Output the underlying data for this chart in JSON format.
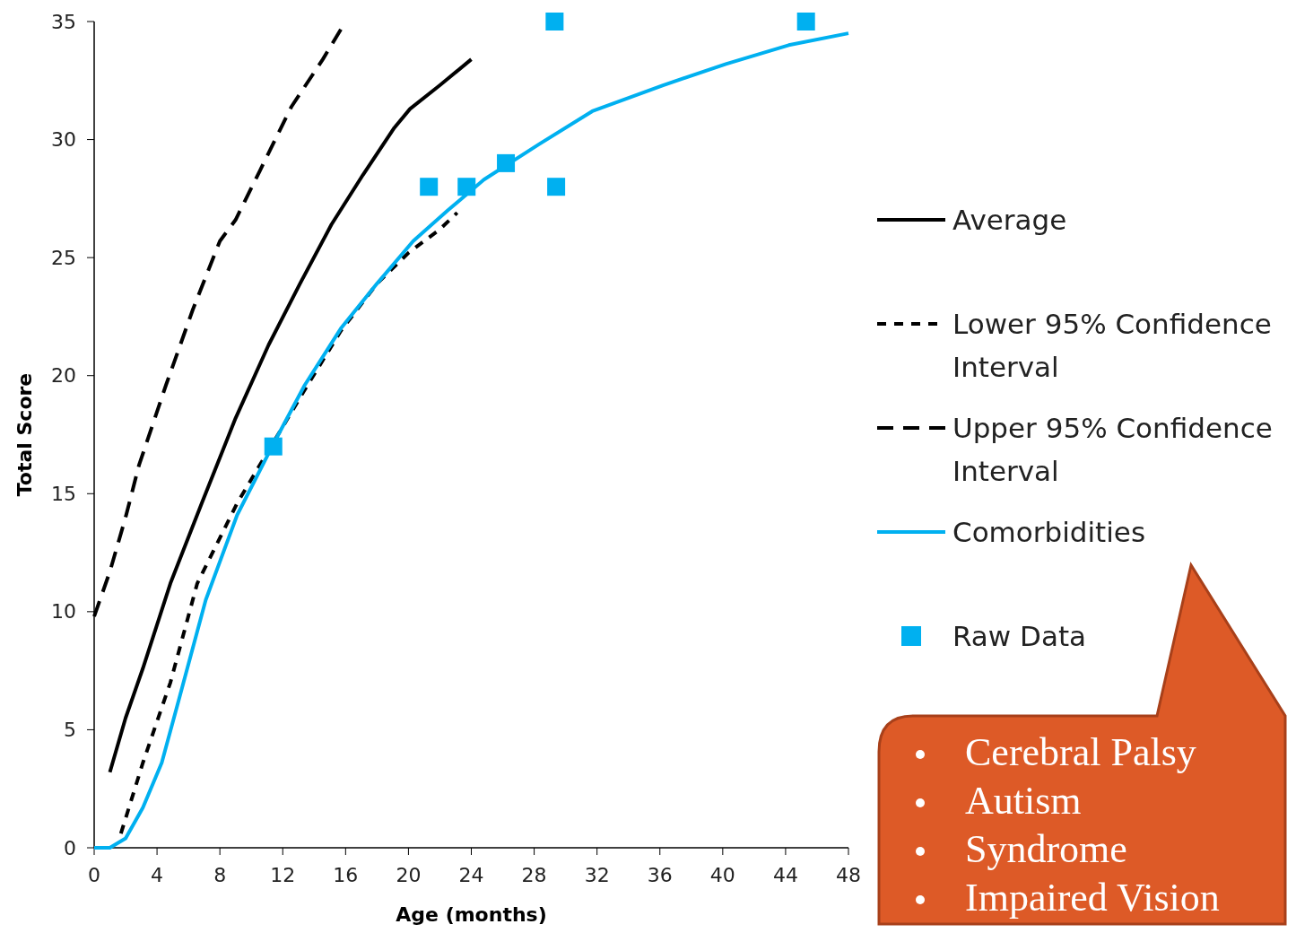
{
  "chart_data": {
    "type": "line",
    "xlabel": "Age (months)",
    "ylabel": "Total Score",
    "xlim": [
      0,
      48
    ],
    "ylim": [
      0,
      35
    ],
    "xticks": [
      0,
      4,
      8,
      12,
      16,
      20,
      24,
      28,
      32,
      36,
      40,
      44,
      48
    ],
    "yticks": [
      0,
      5,
      10,
      15,
      20,
      25,
      30,
      35
    ],
    "grid": false,
    "legend": "right",
    "marker": "none",
    "series": [
      {
        "name": "Average",
        "color": "#000000",
        "line_style": "solid",
        "x": [
          1,
          2,
          3.1,
          4.85,
          6.85,
          9,
          11.1,
          13.1,
          15.1,
          17.1,
          19.1,
          20.1,
          22,
          24
        ],
        "values": [
          3.2,
          5.5,
          7.6,
          11.2,
          14.6,
          18.2,
          21.3,
          23.9,
          26.4,
          28.5,
          30.5,
          31.3,
          32.3,
          33.4
        ]
      },
      {
        "name": "Lower 95% Confidence Interval",
        "color": "#000000",
        "line_style": "dashed",
        "x": [
          1.7,
          3.1,
          4.85,
          6.56,
          9.1,
          11.4,
          13.4,
          15.7,
          18,
          20,
          22,
          23.1
        ],
        "values": [
          0.6,
          3.6,
          7,
          11.2,
          14.6,
          null,
          19.4,
          21.9,
          23.9,
          25.2,
          26.2,
          26.9
        ]
      },
      {
        "name": "Upper 95% Confidence Interval",
        "color": "#000000",
        "line_style": "dashed",
        "x": [
          0,
          1,
          2,
          2.85,
          4.57,
          6.28,
          8,
          9,
          10.56,
          12.56,
          14.55,
          16
        ],
        "values": [
          9.8,
          11.7,
          14,
          16.2,
          19.6,
          22.8,
          25.7,
          26.6,
          28.7,
          31.4,
          33.4,
          35
        ]
      },
      {
        "name": "Comorbidities",
        "color": "#00b0f0",
        "line_style": "solid",
        "x": [
          0,
          1,
          2,
          3.1,
          4.3,
          5.4,
          7.1,
          9.1,
          11.4,
          13.4,
          15.7,
          18,
          20.3,
          22.5,
          24.8,
          28.3,
          31.7,
          36.2,
          40.2,
          44.2,
          48
        ],
        "values": [
          0,
          0,
          0.4,
          1.7,
          3.6,
          6.3,
          10.5,
          14.1,
          17.1,
          19.6,
          22,
          23.9,
          25.7,
          27,
          28.3,
          29.8,
          31.2,
          32.3,
          33.2,
          34,
          34.5
        ]
      },
      {
        "name": "Raw Data",
        "type": "scatter",
        "marker": "square",
        "color": "#00b0f0",
        "x": [
          11.4,
          21.3,
          23.7,
          26.2,
          29.3,
          29.4,
          45.3
        ],
        "values": [
          17,
          28,
          28,
          29,
          35,
          28,
          35
        ]
      }
    ],
    "annotations": [
      "Cerebral Palsy",
      "Autism",
      "Syndrome",
      "Impaired Vision"
    ]
  }
}
